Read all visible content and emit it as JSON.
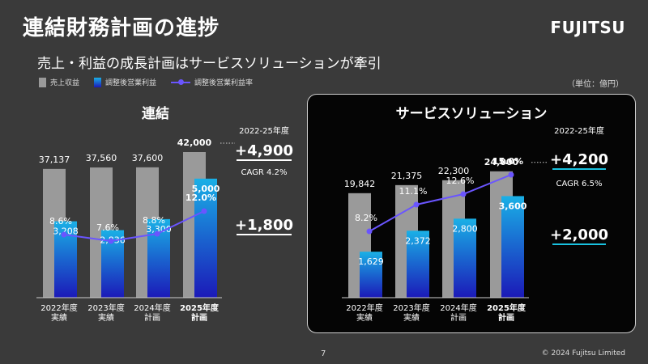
{
  "header": {
    "title": "連結財務計画の進捗",
    "logo": "FUJITSU",
    "subtitle": "売上・利益の成長計画はサービスソリューションが牽引",
    "unit": "（単位：億円）"
  },
  "legend": {
    "revenue": "売上収益",
    "profit": "調整後営業利益",
    "margin": "調整後営業利益率"
  },
  "colors": {
    "background": "#3a3a3a",
    "panel_dark": "#050505",
    "revenue_bar": "#9a9a9a",
    "profit_bar_top": "#1ab0e6",
    "profit_bar_bottom": "#1b19b8",
    "margin_line": "#6a55ff"
  },
  "chart_data": [
    {
      "type": "bar",
      "title": "連結",
      "categories": [
        "2022年度\n実績",
        "2023年度\n実績",
        "2024年度\n計画",
        "2025年度\n計画"
      ],
      "series": [
        {
          "name": "売上収益",
          "values": [
            37137,
            37560,
            37600,
            42000
          ],
          "labels": [
            "37,137",
            "37,560",
            "37,600",
            "42,000"
          ]
        },
        {
          "name": "調整後営業利益",
          "values": [
            3208,
            2836,
            3300,
            5000
          ],
          "labels": [
            "3,208",
            "2,836",
            "3,300",
            "5,000"
          ]
        },
        {
          "name": "調整後営業利益率",
          "type": "line",
          "values": [
            8.6,
            7.6,
            8.8,
            12.0
          ],
          "labels": [
            "8.6%",
            "7.6%",
            "8.8%",
            "12.0%"
          ]
        }
      ],
      "period_label": "2022-25年度",
      "revenue_increase": "+4,900",
      "cagr": "CAGR 4.2%",
      "profit_increase": "+1,800"
    },
    {
      "type": "bar",
      "title": "サービスソリューション",
      "categories": [
        "2022年度\n実績",
        "2023年度\n実績",
        "2024年度\n計画",
        "2025年度\n計画"
      ],
      "series": [
        {
          "name": "売上収益",
          "values": [
            19842,
            21375,
            22300,
            24000
          ],
          "labels": [
            "19,842",
            "21,375",
            "22,300",
            "24,000"
          ]
        },
        {
          "name": "調整後営業利益",
          "values": [
            1629,
            2372,
            2800,
            3600
          ],
          "labels": [
            "1,629",
            "2,372",
            "2,800",
            "3,600"
          ]
        },
        {
          "name": "調整後営業利益率",
          "type": "line",
          "values": [
            8.2,
            11.1,
            12.6,
            15.0
          ],
          "labels": [
            "8.2%",
            "11.1%",
            "12.6%",
            "15.0%"
          ]
        }
      ],
      "period_label": "2022-25年度",
      "revenue_increase": "+4,200",
      "cagr": "CAGR 6.5%",
      "profit_increase": "+2,000"
    }
  ],
  "footer": {
    "page": "7",
    "copyright": "© 2024 Fujitsu Limited"
  }
}
